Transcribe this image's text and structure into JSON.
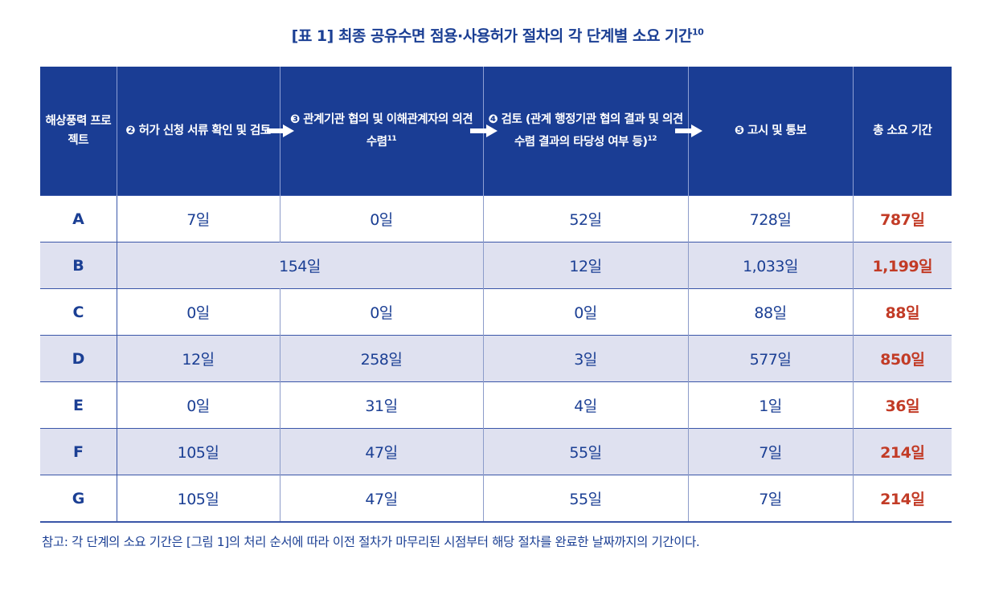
{
  "title": "[표 1]  최종 공유수면 점용·사용허가 절차의 각 단계별 소요 기간",
  "title_sup": "10",
  "headers": [
    {
      "label": "해상풍력 프로젝트"
    },
    {
      "label": "❷ 허가 신청 서류 확인 및 검토"
    },
    {
      "label": "❸ 관계기관 협의 및 이해관계자의 의견 수렴",
      "sup": "11"
    },
    {
      "label": "❹ 검토 (관계 행정기관 협의 결과 및 의견 수렴 결과의 타당성 여부 등)",
      "sup": "12"
    },
    {
      "label": "❺ 고시 및 통보"
    },
    {
      "label": "총 소요 기간"
    }
  ],
  "rows": [
    {
      "project": "A",
      "c2": "7일",
      "c3": "0일",
      "c4": "52일",
      "c5": "728일",
      "total": "787일"
    },
    {
      "project": "B",
      "c23": "154일",
      "c4": "12일",
      "c5": "1,033일",
      "total": "1,199일"
    },
    {
      "project": "C",
      "c2": "0일",
      "c3": "0일",
      "c4": "0일",
      "c5": "88일",
      "total": "88일"
    },
    {
      "project": "D",
      "c2": "12일",
      "c3": "258일",
      "c4": "3일",
      "c5": "577일",
      "total": "850일"
    },
    {
      "project": "E",
      "c2": "0일",
      "c3": "31일",
      "c4": "4일",
      "c5": "1일",
      "total": "36일"
    },
    {
      "project": "F",
      "c2": "105일",
      "c3": "47일",
      "c4": "55일",
      "c5": "7일",
      "total": "214일"
    },
    {
      "project": "G",
      "c2": "105일",
      "c3": "47일",
      "c4": "55일",
      "c5": "7일",
      "total": "214일"
    }
  ],
  "note": "참고: 각 단계의 소요 기간은 [그림 1]의 처리 순서에 따라 이전 절차가 마무리된 시점부터 해당 절차를 완료한 날짜까지의 기간이다.",
  "colors": {
    "header_bg": "#1a3d94",
    "text": "#1b3f94",
    "total": "#c23b26",
    "alt_row": "#dfe1f0"
  }
}
